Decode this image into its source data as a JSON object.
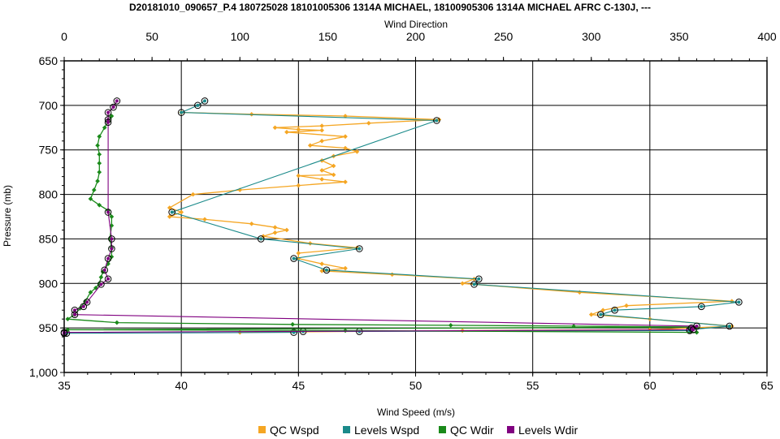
{
  "chart_data": {
    "type": "line",
    "title": "D20181010_090657_P.4 180725028 18101005306 1314A MICHAEL, 18100905306 1314A MICHAEL AFRC C-130J, ---",
    "xlabel_bottom": "Wind Speed (m/s)",
    "xlabel_top": "Wind Direction",
    "ylabel": "Pressure (mb)",
    "x_bottom_range": [
      35,
      65
    ],
    "x_top_range": [
      0,
      400
    ],
    "y_range": [
      650,
      1000
    ],
    "y_inverted": true,
    "x_bottom_ticks": [
      "35",
      "40",
      "45",
      "50",
      "55",
      "60",
      "65"
    ],
    "x_top_ticks": [
      "0",
      "50",
      "100",
      "150",
      "200",
      "250",
      "300",
      "350",
      "400"
    ],
    "y_ticks": [
      "650",
      "700",
      "750",
      "800",
      "850",
      "900",
      "950",
      "1,000"
    ],
    "grid": true,
    "legend_position": "bottom",
    "series": [
      {
        "name": "QC Wspd",
        "axis": "bottom",
        "color": "#f5a623",
        "points": [
          [
            40.0,
            708
          ],
          [
            43.0,
            710
          ],
          [
            47.0,
            712
          ],
          [
            51.0,
            716
          ],
          [
            48.0,
            720
          ],
          [
            46.0,
            723
          ],
          [
            44.0,
            725
          ],
          [
            45.0,
            727
          ],
          [
            46.0,
            728
          ],
          [
            44.5,
            730
          ],
          [
            47.0,
            735
          ],
          [
            46.0,
            740
          ],
          [
            45.5,
            745
          ],
          [
            47.0,
            748
          ],
          [
            47.5,
            752
          ],
          [
            46.5,
            757
          ],
          [
            46.0,
            762
          ],
          [
            46.5,
            768
          ],
          [
            46.0,
            773
          ],
          [
            46.5,
            778
          ],
          [
            45.0,
            779
          ],
          [
            46.0,
            783
          ],
          [
            47.0,
            786
          ],
          [
            45.0,
            790
          ],
          [
            42.5,
            795
          ],
          [
            40.5,
            800
          ],
          [
            39.5,
            815
          ],
          [
            40.0,
            820
          ],
          [
            39.5,
            825
          ],
          [
            41.0,
            828
          ],
          [
            43.0,
            833
          ],
          [
            44.0,
            837
          ],
          [
            44.5,
            840
          ],
          [
            44.0,
            843
          ],
          [
            43.5,
            847
          ],
          [
            45.5,
            855
          ],
          [
            47.5,
            860
          ],
          [
            45.0,
            866
          ],
          [
            45.0,
            872
          ],
          [
            46.0,
            878
          ],
          [
            47.0,
            883
          ],
          [
            46.0,
            886
          ],
          [
            49.0,
            890
          ],
          [
            52.5,
            895
          ],
          [
            52.0,
            900
          ],
          [
            57.0,
            910
          ],
          [
            63.5,
            920
          ],
          [
            59.0,
            925
          ],
          [
            58.0,
            930
          ],
          [
            57.5,
            935
          ],
          [
            60.0,
            940
          ],
          [
            63.5,
            948
          ],
          [
            60.0,
            952
          ],
          [
            52.0,
            953
          ],
          [
            42.5,
            955
          ]
        ]
      },
      {
        "name": "Levels Wspd",
        "axis": "bottom",
        "color": "#1a8a8a",
        "points": [
          [
            41.0,
            695
          ],
          [
            40.7,
            700
          ],
          [
            40.0,
            708
          ],
          [
            50.9,
            717
          ],
          [
            39.6,
            820
          ],
          [
            43.4,
            850
          ],
          [
            47.6,
            861
          ],
          [
            44.8,
            872
          ],
          [
            46.2,
            885
          ],
          [
            52.7,
            895
          ],
          [
            52.5,
            901
          ],
          [
            63.8,
            921
          ],
          [
            62.2,
            926
          ],
          [
            58.5,
            930
          ],
          [
            57.9,
            935
          ],
          [
            63.4,
            948
          ],
          [
            61.7,
            952
          ],
          [
            61.7,
            953
          ],
          [
            47.6,
            954
          ],
          [
            45.2,
            954
          ],
          [
            44.8,
            955
          ],
          [
            35.1,
            956
          ]
        ]
      },
      {
        "name": "QC Wdir",
        "axis": "top",
        "color": "#1a8a1a",
        "points": [
          [
            27,
            712
          ],
          [
            25,
            718
          ],
          [
            23,
            725
          ],
          [
            20,
            735
          ],
          [
            19,
            745
          ],
          [
            20,
            755
          ],
          [
            20,
            765
          ],
          [
            20,
            775
          ],
          [
            19,
            785
          ],
          [
            17,
            795
          ],
          [
            15,
            805
          ],
          [
            20,
            812
          ],
          [
            25,
            818
          ],
          [
            27,
            825
          ],
          [
            27,
            835
          ],
          [
            26,
            850
          ],
          [
            27,
            860
          ],
          [
            27,
            870
          ],
          [
            25,
            878
          ],
          [
            22,
            887
          ],
          [
            21,
            893
          ],
          [
            20,
            900
          ],
          [
            18,
            905
          ],
          [
            15,
            910
          ],
          [
            12,
            920
          ],
          [
            9,
            928
          ],
          [
            6,
            935
          ],
          [
            2,
            940
          ],
          [
            30,
            944
          ],
          [
            130,
            946
          ],
          [
            220,
            947
          ],
          [
            290,
            948
          ],
          [
            360,
            949
          ],
          [
            2,
            952
          ],
          [
            160,
            953
          ],
          [
            360,
            955
          ]
        ]
      },
      {
        "name": "Levels Wdir",
        "axis": "top",
        "color": "#800080",
        "points": [
          [
            30,
            695
          ],
          [
            28,
            702
          ],
          [
            25,
            708
          ],
          [
            25,
            716
          ],
          [
            25,
            719
          ],
          [
            25,
            820
          ],
          [
            27,
            850
          ],
          [
            27,
            861
          ],
          [
            25,
            872
          ],
          [
            23,
            885
          ],
          [
            25,
            895
          ],
          [
            21,
            901
          ],
          [
            13,
            921
          ],
          [
            11,
            926
          ],
          [
            6,
            930
          ],
          [
            6,
            935
          ],
          [
            360,
            948
          ],
          [
            357,
            950
          ],
          [
            358,
            952
          ],
          [
            0,
            955
          ],
          [
            0,
            956
          ]
        ]
      }
    ],
    "legend": [
      {
        "name": "QC Wspd",
        "color": "#f5a623"
      },
      {
        "name": "Levels Wspd",
        "color": "#1a8a8a"
      },
      {
        "name": "QC Wdir",
        "color": "#1a8a1a"
      },
      {
        "name": "Levels Wdir",
        "color": "#800080"
      }
    ]
  }
}
